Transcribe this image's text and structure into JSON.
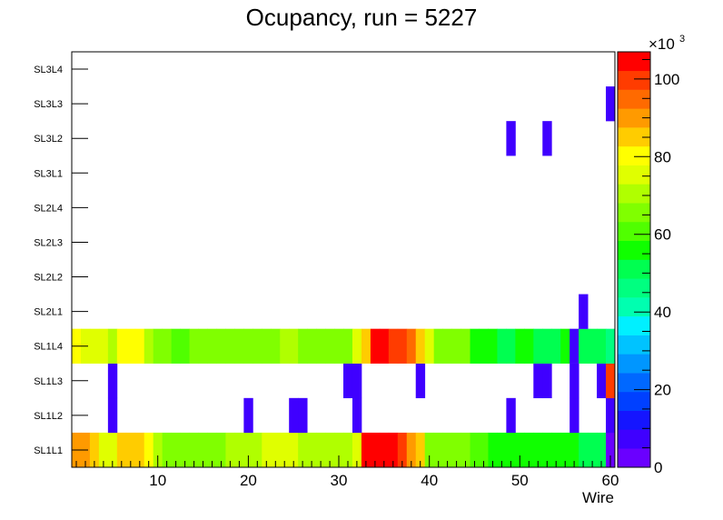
{
  "chart_data": {
    "type": "heatmap",
    "title": "Ocupancy, run = 5227",
    "xlabel": "Wire",
    "ylabel": "",
    "xlim": [
      0.5,
      60.5
    ],
    "x_ticks": [
      "10",
      "20",
      "30",
      "40",
      "50",
      "60"
    ],
    "x_tick_values": [
      10,
      20,
      30,
      40,
      50,
      60
    ],
    "y_categories": [
      "SL1L1",
      "SL1L2",
      "SL1L3",
      "SL1L4",
      "SL2L1",
      "SL2L2",
      "SL2L3",
      "SL2L4",
      "SL3L1",
      "SL3L2",
      "SL3L3",
      "SL3L4"
    ],
    "z_range": [
      0,
      107000
    ],
    "colorbar_ticks": [
      "0",
      "20",
      "40",
      "60",
      "80",
      "100"
    ],
    "colorbar_tick_values": [
      0,
      20000,
      40000,
      60000,
      80000,
      100000
    ],
    "colorbar_exponent": "×10",
    "colorbar_exponent_power": "3",
    "colorbar_palette": [
      "#6a00ff",
      "#3f00ff",
      "#1515ff",
      "#0040ff",
      "#0068ff",
      "#0096ff",
      "#00c3ff",
      "#00f0ff",
      "#00ffb0",
      "#00ff80",
      "#00ff50",
      "#10ff00",
      "#50ff00",
      "#80ff00",
      "#b0ff00",
      "#e0ff00",
      "#ffff00",
      "#ffcc00",
      "#ff9a00",
      "#ff6a00",
      "#ff3c00",
      "#ff0000"
    ],
    "rows": [
      {
        "layer": "SL1L1",
        "cells": [
          [
            1,
            88000
          ],
          [
            2,
            88000
          ],
          [
            3,
            86000
          ],
          [
            4,
            75000
          ],
          [
            5,
            75000
          ],
          [
            6,
            85000
          ],
          [
            7,
            87000
          ],
          [
            8,
            87000
          ],
          [
            9,
            78000
          ],
          [
            10,
            72000
          ],
          [
            11,
            65000
          ],
          [
            12,
            65000
          ],
          [
            13,
            65000
          ],
          [
            14,
            67000
          ],
          [
            15,
            68000
          ],
          [
            16,
            65000
          ],
          [
            17,
            65000
          ],
          [
            18,
            72000
          ],
          [
            19,
            72000
          ],
          [
            20,
            72000
          ],
          [
            21,
            72000
          ],
          [
            22,
            75000
          ],
          [
            23,
            75000
          ],
          [
            24,
            75000
          ],
          [
            25,
            75000
          ],
          [
            26,
            72000
          ],
          [
            27,
            72000
          ],
          [
            28,
            72000
          ],
          [
            29,
            72000
          ],
          [
            30,
            72000
          ],
          [
            31,
            72000
          ],
          [
            32,
            75000
          ],
          [
            33,
            105000
          ],
          [
            34,
            105000
          ],
          [
            35,
            105000
          ],
          [
            36,
            105000
          ],
          [
            37,
            100000
          ],
          [
            38,
            90000
          ],
          [
            39,
            86000
          ],
          [
            40,
            65000
          ],
          [
            41,
            65000
          ],
          [
            42,
            65000
          ],
          [
            43,
            65000
          ],
          [
            44,
            65000
          ],
          [
            45,
            62000
          ],
          [
            46,
            62000
          ],
          [
            47,
            55000
          ],
          [
            48,
            55000
          ],
          [
            49,
            55000
          ],
          [
            50,
            55000
          ],
          [
            51,
            55000
          ],
          [
            52,
            55000
          ],
          [
            53,
            55000
          ],
          [
            54,
            55000
          ],
          [
            55,
            55000
          ],
          [
            56,
            55000
          ],
          [
            57,
            52000
          ],
          [
            58,
            52000
          ],
          [
            59,
            52000
          ],
          [
            60,
            4000
          ]
        ]
      },
      {
        "layer": "SL1L2",
        "cells": [
          [
            5,
            5000
          ],
          [
            20,
            5000
          ],
          [
            25,
            5000
          ],
          [
            26,
            5000
          ],
          [
            32,
            5000
          ],
          [
            49,
            5000
          ],
          [
            56,
            5000
          ],
          [
            60,
            5000
          ]
        ]
      },
      {
        "layer": "SL1L3",
        "cells": [
          [
            5,
            5000
          ],
          [
            31,
            5000
          ],
          [
            32,
            5000
          ],
          [
            39,
            5000
          ],
          [
            52,
            5000
          ],
          [
            53,
            5000
          ],
          [
            56,
            5000
          ],
          [
            59,
            5000
          ],
          [
            60,
            98000
          ]
        ]
      },
      {
        "layer": "SL1L4",
        "cells": [
          [
            1,
            80000
          ],
          [
            2,
            75000
          ],
          [
            3,
            75000
          ],
          [
            4,
            75000
          ],
          [
            5,
            72000
          ],
          [
            6,
            78000
          ],
          [
            7,
            78000
          ],
          [
            8,
            78000
          ],
          [
            9,
            72000
          ],
          [
            10,
            68000
          ],
          [
            11,
            68000
          ],
          [
            12,
            62000
          ],
          [
            13,
            62000
          ],
          [
            14,
            68000
          ],
          [
            15,
            68000
          ],
          [
            16,
            65000
          ],
          [
            17,
            65000
          ],
          [
            18,
            65000
          ],
          [
            19,
            68000
          ],
          [
            20,
            68000
          ],
          [
            21,
            68000
          ],
          [
            22,
            68000
          ],
          [
            23,
            68000
          ],
          [
            24,
            72000
          ],
          [
            25,
            72000
          ],
          [
            26,
            65000
          ],
          [
            27,
            65000
          ],
          [
            28,
            65000
          ],
          [
            29,
            65000
          ],
          [
            30,
            65000
          ],
          [
            31,
            65000
          ],
          [
            32,
            75000
          ],
          [
            33,
            87000
          ],
          [
            34,
            105000
          ],
          [
            35,
            105000
          ],
          [
            36,
            100000
          ],
          [
            37,
            98000
          ],
          [
            38,
            93000
          ],
          [
            39,
            87000
          ],
          [
            40,
            75000
          ],
          [
            41,
            65000
          ],
          [
            42,
            65000
          ],
          [
            43,
            65000
          ],
          [
            44,
            65000
          ],
          [
            45,
            58000
          ],
          [
            46,
            58000
          ],
          [
            47,
            58000
          ],
          [
            48,
            52000
          ],
          [
            49,
            52000
          ],
          [
            50,
            55000
          ],
          [
            51,
            55000
          ],
          [
            52,
            52000
          ],
          [
            53,
            52000
          ],
          [
            54,
            52000
          ],
          [
            55,
            58000
          ],
          [
            56,
            5000
          ],
          [
            57,
            50000
          ],
          [
            58,
            50000
          ],
          [
            59,
            50000
          ],
          [
            60,
            45000
          ]
        ]
      },
      {
        "layer": "SL2L1",
        "cells": [
          [
            57,
            5000
          ]
        ]
      },
      {
        "layer": "SL2L2",
        "cells": []
      },
      {
        "layer": "SL2L3",
        "cells": []
      },
      {
        "layer": "SL2L4",
        "cells": []
      },
      {
        "layer": "SL3L1",
        "cells": []
      },
      {
        "layer": "SL3L2",
        "cells": [
          [
            49,
            5000
          ],
          [
            53,
            5000
          ]
        ]
      },
      {
        "layer": "SL3L3",
        "cells": [
          [
            60,
            5000
          ]
        ]
      },
      {
        "layer": "SL3L4",
        "cells": []
      }
    ]
  }
}
